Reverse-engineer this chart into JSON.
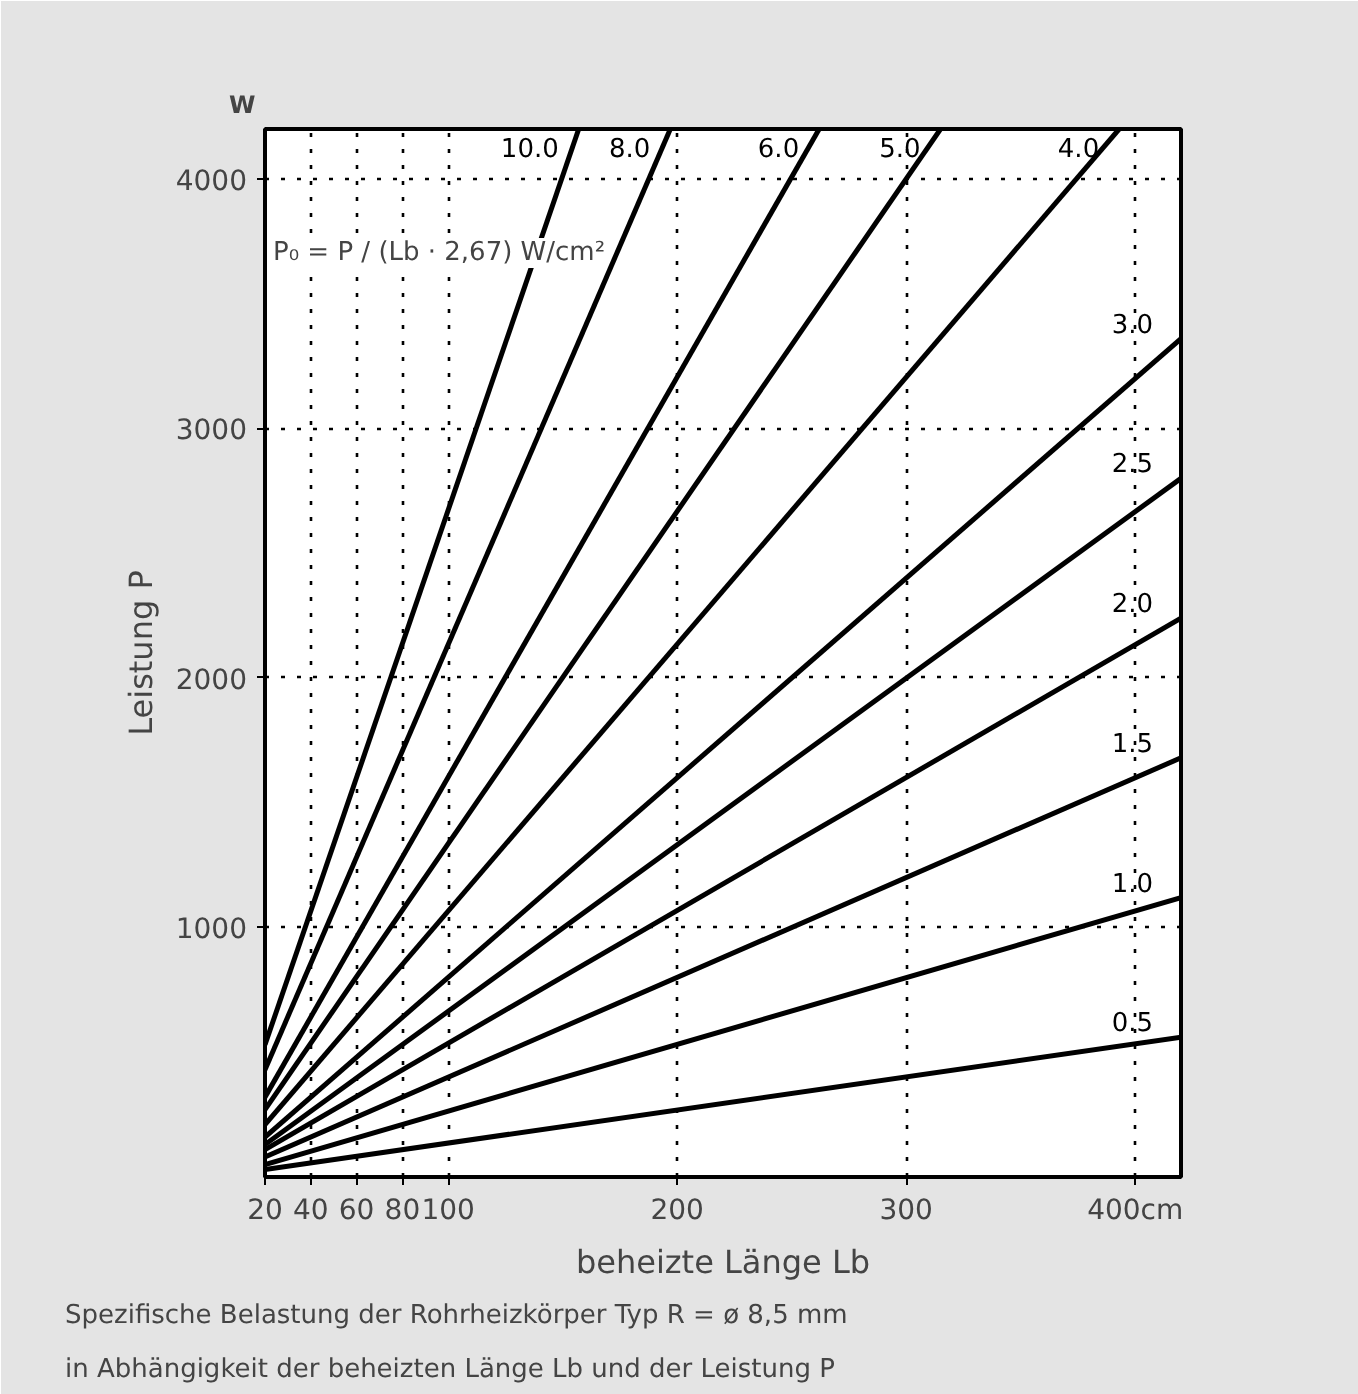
{
  "chart_data": {
    "type": "line",
    "xlabel": "beheizte Länge Lb",
    "ylabel": "Leistung P",
    "xlim": [
      20,
      420
    ],
    "ylim": [
      0,
      4200
    ],
    "xticks": [
      20,
      40,
      60,
      80,
      100,
      200,
      300,
      {
        "value": 400,
        "label": "400cm"
      }
    ],
    "yticks": [
      1000,
      2000,
      3000,
      4000
    ],
    "grid": true,
    "line_style": "solid",
    "marker": "none",
    "series": [
      {
        "name": "10.0",
        "color": "#000000",
        "x": [
          20,
          157
        ],
        "values": [
          530,
          4200
        ]
      },
      {
        "name": "8.0",
        "color": "#000000",
        "x": [
          20,
          197
        ],
        "values": [
          430,
          4200
        ]
      },
      {
        "name": "6.0",
        "color": "#000000",
        "x": [
          20,
          262
        ],
        "values": [
          320,
          4200
        ]
      },
      {
        "name": "5.0",
        "color": "#000000",
        "x": [
          20,
          315
        ],
        "values": [
          270,
          4200
        ]
      },
      {
        "name": "4.0",
        "color": "#000000",
        "x": [
          20,
          393
        ],
        "values": [
          210,
          4200
        ]
      },
      {
        "name": "3.0",
        "color": "#000000",
        "x": [
          20,
          420
        ],
        "values": [
          160,
          3360
        ]
      },
      {
        "name": "2.5",
        "color": "#000000",
        "x": [
          20,
          420
        ],
        "values": [
          130,
          2800
        ]
      },
      {
        "name": "2.0",
        "color": "#000000",
        "x": [
          20,
          420
        ],
        "values": [
          110,
          2240
        ]
      },
      {
        "name": "1.5",
        "color": "#000000",
        "x": [
          20,
          420
        ],
        "values": [
          80,
          1680
        ]
      },
      {
        "name": "1.0",
        "color": "#000000",
        "x": [
          20,
          420
        ],
        "values": [
          50,
          1120
        ]
      },
      {
        "name": "0.5",
        "color": "#000000",
        "x": [
          20,
          420
        ],
        "values": [
          30,
          560
        ]
      }
    ],
    "annotations": [
      "P₀ = P / (Lb · 2,67) W/cm²",
      "W",
      "Spezifische Belastung der Rohrheizkörper Typ R = ø 8,5 mm",
      "in Abhängigkeit der beheizten Länge Lb und der Leistung P"
    ]
  }
}
